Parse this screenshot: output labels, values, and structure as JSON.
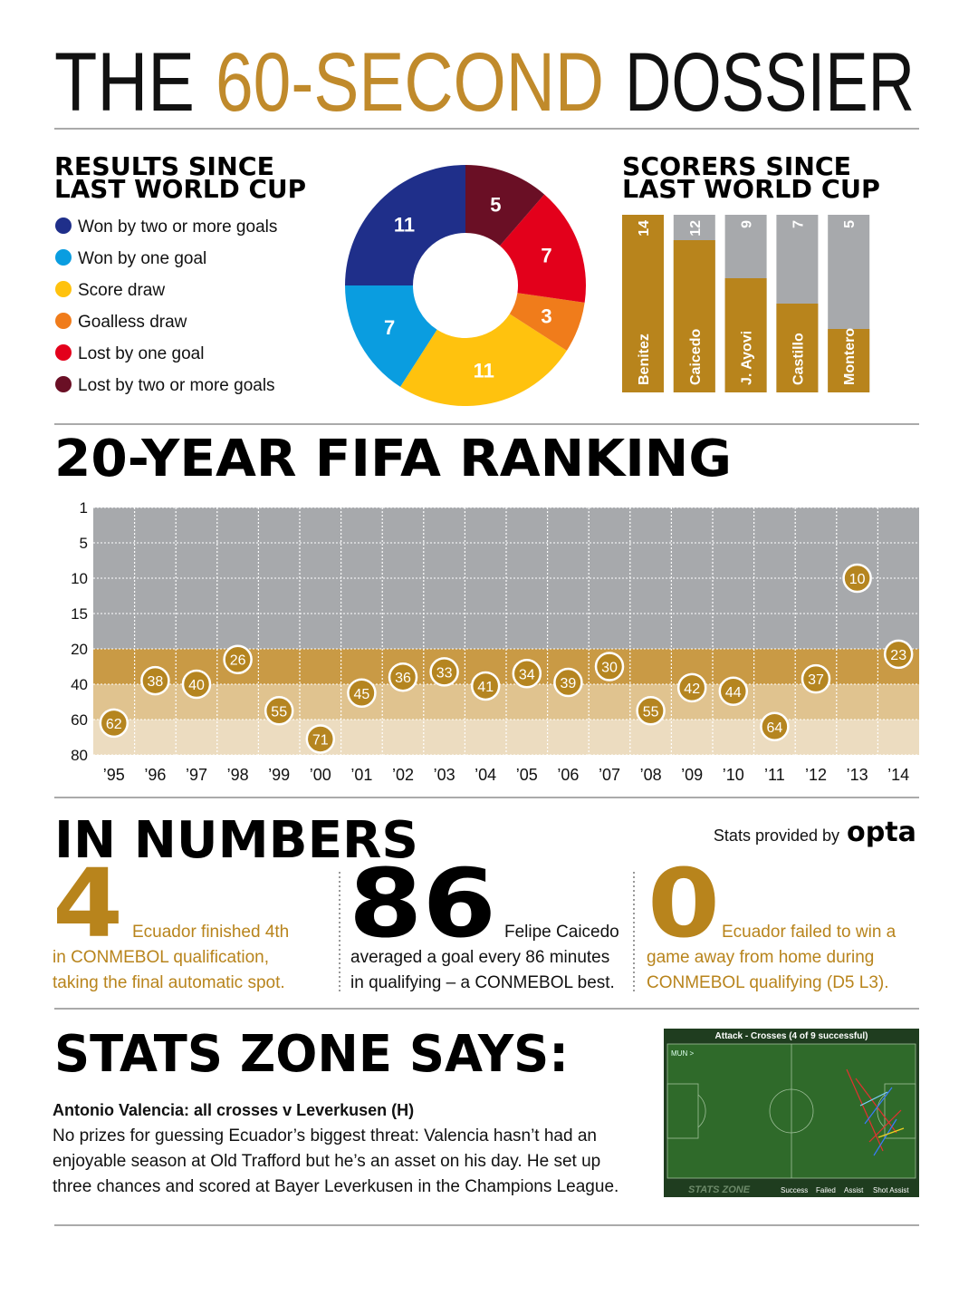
{
  "title": {
    "words": [
      "THE",
      "60-SECOND",
      "DOSSIER"
    ]
  },
  "chart_data": [
    {
      "type": "pie",
      "title": [
        "RESULTS SINCE",
        "LAST WORLD CUP"
      ],
      "direction": "counterclockwise",
      "categories": [
        "Won by two or more goals",
        "Won by one goal",
        "Score draw",
        "Goalless draw",
        "Lost by one goal",
        "Lost by two or more goals"
      ],
      "values": [
        11,
        7,
        11,
        3,
        7,
        5
      ],
      "colors": [
        "#1f2f8a",
        "#0a9de0",
        "#ffc20e",
        "#f07c1b",
        "#e3001b",
        "#6a0f25"
      ]
    },
    {
      "type": "bar",
      "title": [
        "SCORERS SINCE",
        "LAST WORLD CUP"
      ],
      "categories": [
        "Benitez",
        "Caicedo",
        "J. Ayovi",
        "Castillo",
        "Montero"
      ],
      "values": [
        14,
        12,
        9,
        7,
        5
      ],
      "color": "#b8841c",
      "ylim": [
        0,
        14
      ]
    },
    {
      "type": "dot",
      "title": "20-YEAR FIFA RANKING",
      "categories": [
        "’95",
        "’96",
        "’97",
        "’98",
        "’99",
        "’00",
        "’01",
        "’02",
        "’03",
        "’04",
        "’05",
        "’06",
        "’07",
        "’08",
        "’09",
        "’10",
        "’11",
        "’12",
        "’13",
        "’14"
      ],
      "values": [
        62,
        38,
        40,
        26,
        55,
        71,
        45,
        36,
        33,
        41,
        34,
        39,
        30,
        55,
        42,
        44,
        64,
        37,
        10,
        23
      ],
      "color": "#b58520",
      "ylim": [
        1,
        80
      ],
      "yticks": [
        1,
        5,
        10,
        15,
        20,
        40,
        60,
        80
      ],
      "y_inverted": true,
      "y_scale": "piecewise",
      "grid": true
    }
  ],
  "in_numbers": {
    "title": "IN NUMBERS",
    "credit": "Stats provided by",
    "logo": "opta",
    "items": [
      {
        "number": 4,
        "lines": [
          "Ecuador finished 4th",
          "in CONMEBOL qualification,",
          "taking the final automatic spot."
        ]
      },
      {
        "number": 86,
        "lines": [
          "Felipe Caicedo",
          "averaged a goal every 86 minutes",
          "in qualifying – a CONMEBOL best."
        ]
      },
      {
        "number": 0,
        "lines": [
          "Ecuador failed to win a",
          "game away from home during",
          "CONMEBOL qualifying (D5 L3)."
        ]
      }
    ]
  },
  "stats_zone": {
    "title": "STATS ZONE SAYS:",
    "subtitle": "Antonio Valencia: all crosses v Leverkusen (H)",
    "lines": [
      "No prizes for guessing Ecuador’s biggest threat: Valencia hasn’t had an",
      "enjoyable season at Old Trafford but he’s an asset on his day. He set up",
      "three chances and scored at Bayer Leverkusen in the Champions League."
    ],
    "graphic": {
      "header": "Attack - Crosses (4 of 9 successful)",
      "team": "MUN >",
      "brand": "STATS ZONE",
      "legend": [
        "Success",
        "Failed",
        "Assist",
        "Shot Assist"
      ]
    }
  }
}
